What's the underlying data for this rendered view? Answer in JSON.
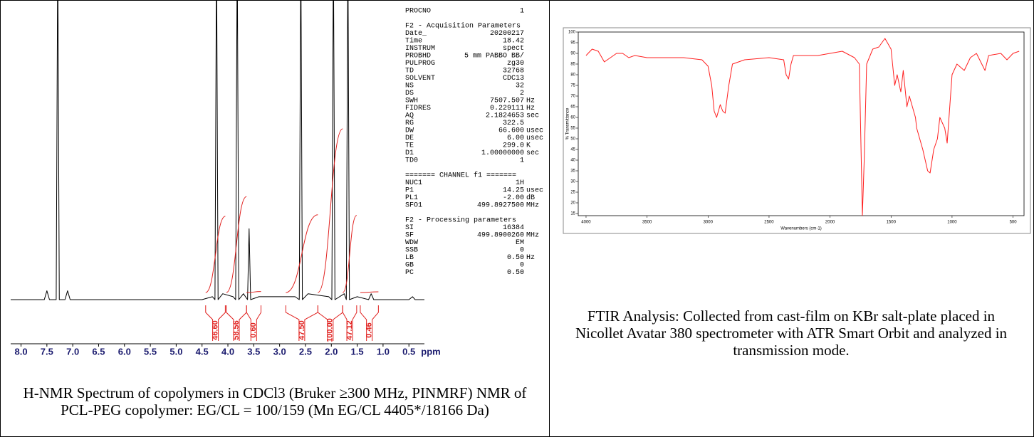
{
  "nmr": {
    "type": "line",
    "caption": "H-NMR Spectrum of copolymers in CDCl3 (Bruker ≥300 MHz, PINMRF) NMR of PCL-PEG copolymer: EG/CL = 100/159 (Mn EG/CL 4405*/18166 Da)",
    "x": [
      8.2,
      7.55,
      7.5,
      7.45,
      7.32,
      7.29,
      7.26,
      7.15,
      7.1,
      7.05,
      6.0,
      4.5,
      4.3,
      4.25,
      4.22,
      4.19,
      4.1,
      3.9,
      3.85,
      3.82,
      3.79,
      3.7,
      3.62,
      3.59,
      3.56,
      3.4,
      2.7,
      2.62,
      2.59,
      2.56,
      2.45,
      2.05,
      1.99,
      1.96,
      1.93,
      1.75,
      1.71,
      1.68,
      1.65,
      1.5,
      1.28,
      1.23,
      1.18,
      0.5,
      0.43,
      0.38,
      0.2
    ],
    "y": [
      0,
      0,
      3,
      0,
      0,
      120,
      0,
      0,
      3,
      0,
      0,
      0,
      1,
      0,
      120,
      0,
      2,
      1,
      0,
      120,
      0,
      2,
      0,
      24,
      0,
      1,
      1,
      0,
      120,
      0,
      2,
      1,
      0,
      120,
      0,
      2,
      0,
      120,
      0,
      1,
      0,
      2,
      0,
      0,
      1,
      0,
      0
    ],
    "color": "#000000",
    "xlim": [
      8.2,
      0.2
    ],
    "ylim": [
      0,
      100
    ],
    "xticks": [
      {
        "value": 8,
        "label": "8.0"
      },
      7.5,
      {
        "value": 7,
        "label": "7.0"
      },
      6.5,
      {
        "value": 6,
        "label": "6.0"
      },
      5.5,
      {
        "value": 5,
        "label": "5.0"
      },
      4.5,
      {
        "value": 4,
        "label": "4.0"
      },
      3.5,
      {
        "value": 3,
        "label": "3.0"
      },
      2.5,
      {
        "value": 2,
        "label": "2.0"
      },
      1.5,
      {
        "value": 1,
        "label": "1.0"
      },
      0.5
    ],
    "xlabel": "ppm",
    "integrals": {
      "color": "#e0201e",
      "ranges": [
        [
          4.43,
          4.05
        ],
        [
          4.03,
          3.64
        ],
        [
          3.64,
          3.36
        ],
        [
          2.88,
          2.26
        ],
        [
          2.26,
          1.78
        ],
        [
          1.78,
          1.51
        ],
        [
          1.44,
          1.09
        ]
      ],
      "values": [
        46.6,
        58.56,
        0.6,
        47.5,
        100,
        47.12,
        0.46
      ],
      "value_labels": [
        "46.60",
        "58.56",
        "0.60",
        "47.50",
        "100.00",
        "47.12",
        "0.46"
      ]
    }
  },
  "parameters": [
    {
      "rows": [
        [
          "PROCNO",
          "1",
          ""
        ]
      ]
    },
    {
      "title": "F2 - Acquisition Parameters",
      "rows": [
        [
          "Date_",
          "20200217",
          ""
        ],
        [
          "Time",
          "18.42",
          ""
        ],
        [
          "INSTRUM",
          "spect",
          ""
        ],
        [
          "PROBHD",
          "5 mm PABBO BB/",
          ""
        ],
        [
          "PULPROG",
          "zg30",
          ""
        ],
        [
          "TD",
          "32768",
          ""
        ],
        [
          "SOLVENT",
          "CDC13",
          ""
        ],
        [
          "NS",
          "32",
          ""
        ],
        [
          "DS",
          "2",
          ""
        ],
        [
          "SWH",
          "7507.507",
          "Hz"
        ],
        [
          "FIDRES",
          "0.229111",
          "Hz"
        ],
        [
          "AQ",
          "2.1824653",
          "sec"
        ],
        [
          "RG",
          "322.5",
          ""
        ],
        [
          "DW",
          "66.600",
          "usec"
        ],
        [
          "DE",
          "6.00",
          "usec"
        ],
        [
          "TE",
          "299.0",
          "K"
        ],
        [
          "D1",
          "1.00000000",
          "sec"
        ],
        [
          "TD0",
          "1",
          ""
        ]
      ]
    },
    {
      "title": "======= CHANNEL f1 =======",
      "rows": [
        [
          "NUC1",
          "1H",
          ""
        ],
        [
          "P1",
          "14.25",
          "usec"
        ],
        [
          "PL1",
          "-2.00",
          "dB"
        ],
        [
          "SFO1",
          "499.8927500",
          "MHz"
        ]
      ]
    },
    {
      "title": "F2 - Processing parameters",
      "rows": [
        [
          "SI",
          "16384",
          ""
        ],
        [
          "SF",
          "499.8900260",
          "MHz"
        ],
        [
          "WDW",
          "EM",
          ""
        ],
        [
          "SSB",
          "0",
          ""
        ],
        [
          "LB",
          "0.50",
          "Hz"
        ],
        [
          "GB",
          "0",
          ""
        ],
        [
          "PC",
          "0.50",
          ""
        ]
      ]
    }
  ],
  "ftir": {
    "type": "line",
    "caption": "FTIR Analysis: Collected from cast-film on KBr salt-plate placed in Nicollet Avatar 380 spectrometer with ATR Smart Orbit and analyzed in transmission mode.",
    "xlabel": "Wavenumbers (cm-1)",
    "ylabel": "% Transmittance",
    "color": "#ff2020",
    "x": [
      4000,
      3950,
      3900,
      3850,
      3800,
      3750,
      3700,
      3650,
      3600,
      3500,
      3200,
      3050,
      3000,
      2970,
      2950,
      2930,
      2900,
      2880,
      2860,
      2830,
      2800,
      2700,
      2500,
      2380,
      2360,
      2340,
      2320,
      2300,
      2100,
      2000,
      1900,
      1800,
      1760,
      1735,
      1720,
      1700,
      1650,
      1600,
      1550,
      1500,
      1470,
      1450,
      1420,
      1400,
      1370,
      1350,
      1300,
      1290,
      1240,
      1200,
      1180,
      1150,
      1120,
      1100,
      1060,
      1040,
      1000,
      960,
      900,
      850,
      800,
      730,
      700,
      600,
      550,
      500,
      450
    ],
    "y": [
      89,
      92,
      91,
      86,
      88,
      90,
      90,
      88,
      89,
      88,
      88,
      87,
      84,
      75,
      63,
      60,
      66,
      63,
      62,
      75,
      85,
      87,
      88,
      87,
      80,
      78,
      85,
      89,
      89,
      90,
      91,
      88,
      85,
      14,
      40,
      85,
      92,
      93,
      97,
      92,
      75,
      80,
      72,
      82,
      65,
      70,
      60,
      55,
      45,
      35,
      34,
      45,
      50,
      60,
      55,
      48,
      80,
      85,
      82,
      88,
      90,
      82,
      89,
      90,
      87,
      90,
      91
    ],
    "xlim": [
      4064,
      410
    ],
    "ylim": [
      14,
      100
    ],
    "xticks": [
      4000,
      3500,
      3000,
      2500,
      2000,
      1500,
      1000,
      500
    ],
    "yticks": [
      15,
      20,
      25,
      30,
      35,
      40,
      45,
      50,
      55,
      60,
      65,
      70,
      75,
      80,
      85,
      90,
      95,
      100
    ]
  }
}
